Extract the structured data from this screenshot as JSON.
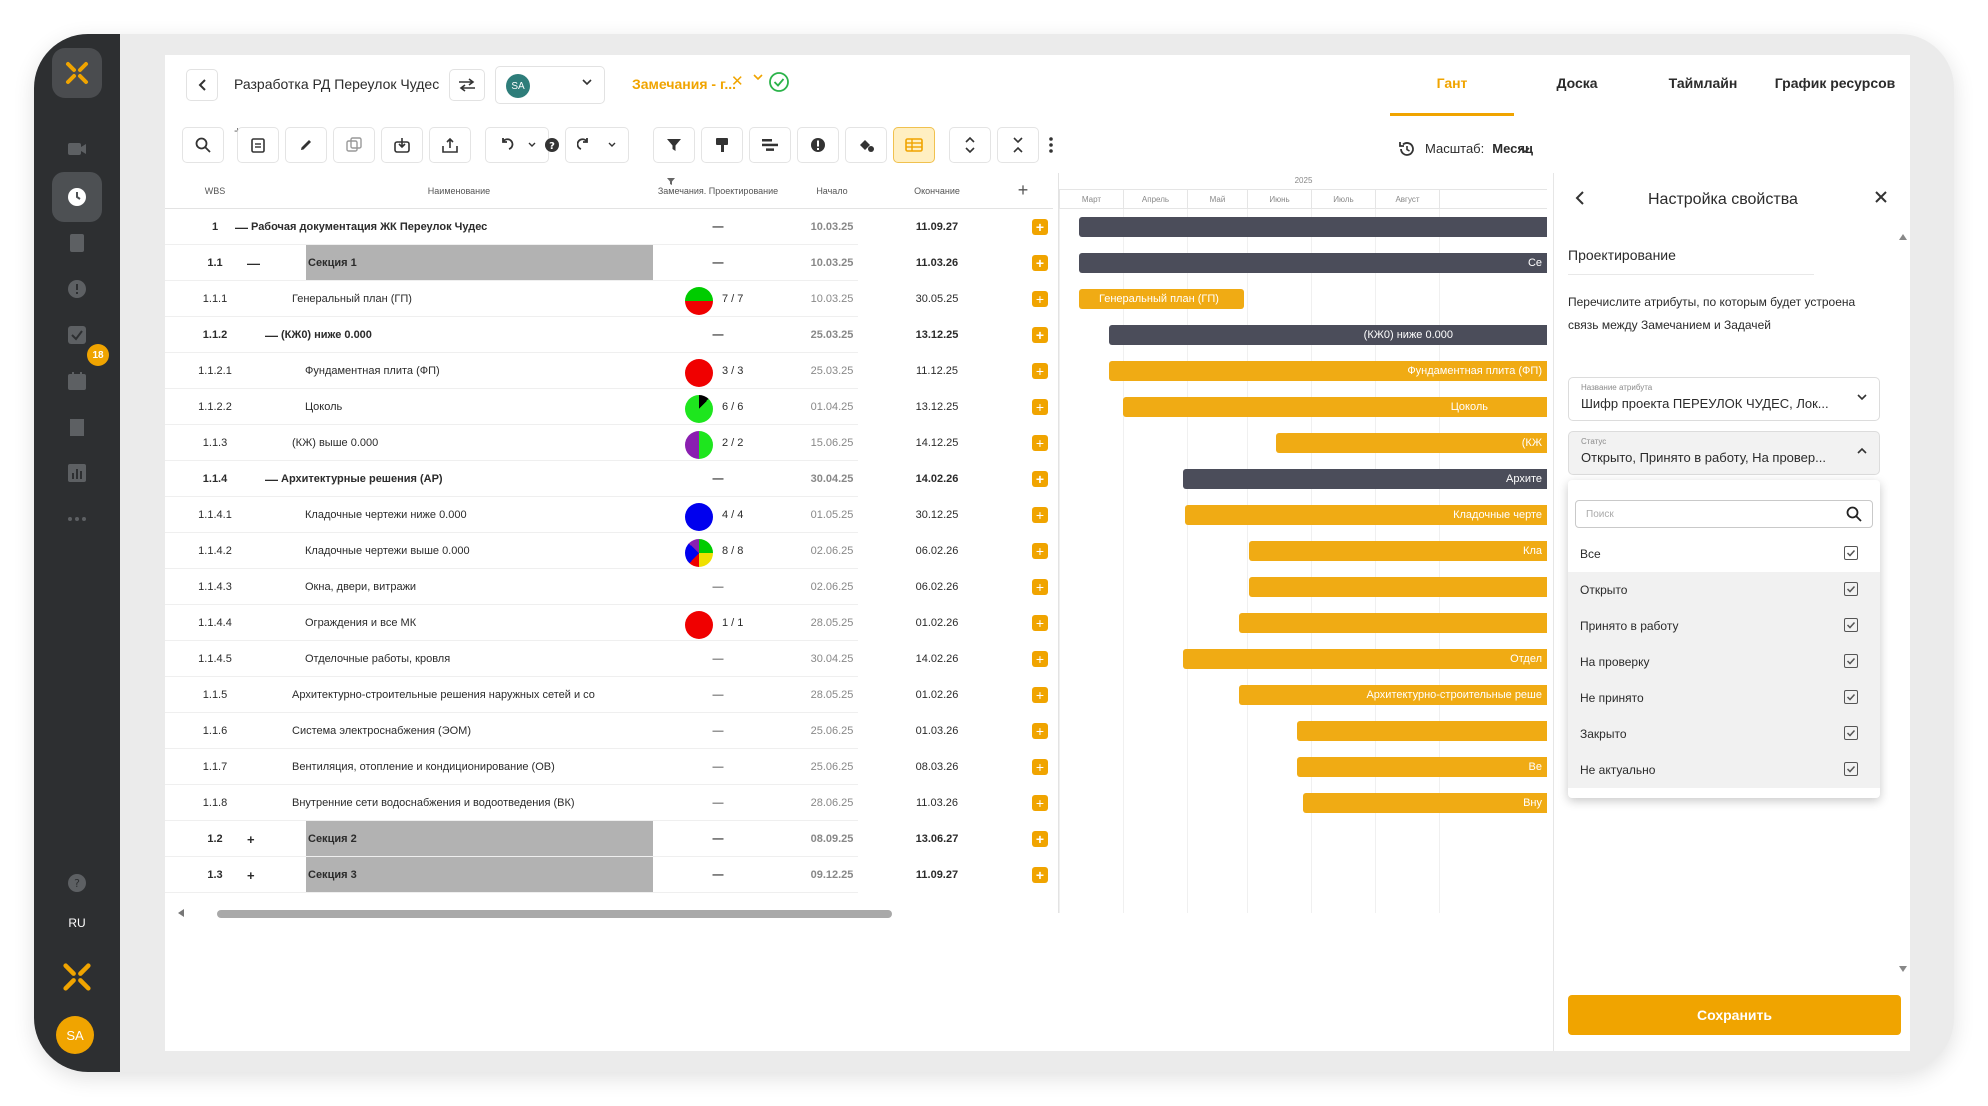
{
  "app": {
    "lang": "RU",
    "user_initials": "SA",
    "badge_count": "18"
  },
  "header": {
    "project_title": "Разработка РД Переулок Чудес",
    "user_initials": "SA",
    "filter_label": "Замечания - г...",
    "tabs": [
      {
        "label": "Гант"
      },
      {
        "label": "Доска"
      },
      {
        "label": "Таймлайн"
      },
      {
        "label": "График ресурсов"
      }
    ],
    "active_tab": "Гант"
  },
  "toolbar": {
    "scale_label": "Масштаб:",
    "scale_value": "Месяц"
  },
  "table": {
    "columns": [
      "WBS",
      "Наименование",
      "Замечания. Проектирование",
      "Начало",
      "Окончание"
    ],
    "rows": [
      {
        "wbs": "1",
        "name": "Рабочая документация ЖК Переулок Чудес",
        "toggle": "—",
        "remarks": "—",
        "start": "10.03.25",
        "end": "11.09.27"
      },
      {
        "wbs": "1.1",
        "name": "Секция 1",
        "toggle": "—",
        "remarks": "—",
        "start": "10.03.25",
        "end": "11.03.26"
      },
      {
        "wbs": "1.1.1",
        "name": "Генеральный план (ГП)",
        "remarks": "7 / 7",
        "start": "10.03.25",
        "end": "30.05.25"
      },
      {
        "wbs": "1.1.2",
        "name": "(КЖ0) ниже 0.000",
        "toggle": "—",
        "remarks": "—",
        "start": "25.03.25",
        "end": "13.12.25"
      },
      {
        "wbs": "1.1.2.1",
        "name": "Фундаментная плита (ФП)",
        "remarks": "3 / 3",
        "start": "25.03.25",
        "end": "11.12.25"
      },
      {
        "wbs": "1.1.2.2",
        "name": "Цоколь",
        "remarks": "6 / 6",
        "start": "01.04.25",
        "end": "13.12.25"
      },
      {
        "wbs": "1.1.3",
        "name": "(КЖ) выше 0.000",
        "remarks": "2 / 2",
        "start": "15.06.25",
        "end": "14.12.25"
      },
      {
        "wbs": "1.1.4",
        "name": "Архитектурные решения (АР)",
        "toggle": "—",
        "remarks": "—",
        "start": "30.04.25",
        "end": "14.02.26"
      },
      {
        "wbs": "1.1.4.1",
        "name": "Кладочные чертежи ниже 0.000",
        "remarks": "4 / 4",
        "start": "01.05.25",
        "end": "30.12.25"
      },
      {
        "wbs": "1.1.4.2",
        "name": "Кладочные чертежи выше 0.000",
        "remarks": "8 / 8",
        "start": "02.06.25",
        "end": "06.02.26"
      },
      {
        "wbs": "1.1.4.3",
        "name": "Окна, двери, витражи",
        "remarks": "—",
        "start": "02.06.25",
        "end": "06.02.26"
      },
      {
        "wbs": "1.1.4.4",
        "name": "Ограждения и все МК",
        "remarks": "1 / 1",
        "start": "28.05.25",
        "end": "01.02.26"
      },
      {
        "wbs": "1.1.4.5",
        "name": "Отделочные работы, кровля",
        "remarks": "—",
        "start": "30.04.25",
        "end": "14.02.26"
      },
      {
        "wbs": "1.1.5",
        "name": "Архитектурно-строительные решения наружных сетей и со",
        "remarks": "—",
        "start": "28.05.25",
        "end": "01.02.26"
      },
      {
        "wbs": "1.1.6",
        "name": "Система электроснабжения (ЭОМ)",
        "remarks": "—",
        "start": "25.06.25",
        "end": "01.03.26"
      },
      {
        "wbs": "1.1.7",
        "name": "Вентиляция, отопление и кондиционирование (ОВ)",
        "remarks": "—",
        "start": "25.06.25",
        "end": "08.03.26"
      },
      {
        "wbs": "1.1.8",
        "name": "Внутренние сети водоснабжения и водоотведения (ВК)",
        "remarks": "—",
        "start": "28.06.25",
        "end": "11.03.26"
      },
      {
        "wbs": "1.2",
        "name": "Секция 2",
        "toggle": "+",
        "remarks": "—",
        "start": "08.09.25",
        "end": "13.06.27"
      },
      {
        "wbs": "1.3",
        "name": "Секция 3",
        "toggle": "+",
        "remarks": "—",
        "start": "09.12.25",
        "end": "11.09.27"
      }
    ]
  },
  "gantt": {
    "year": "2025",
    "months": [
      "Март",
      "Апрель",
      "Май",
      "Июнь",
      "Июль",
      "Август"
    ],
    "bar_labels": [
      "Се",
      "Генеральный план (ГП)",
      "(КЖ0) ниже 0.000",
      "Фундаментная плита (ФП)",
      "Цоколь",
      "(КЖ",
      "Архите",
      "Кладочные черте",
      "Кла",
      "Отдел",
      "Архитектурно-строительные реше",
      "Вe",
      "Вну"
    ]
  },
  "panel": {
    "title": "Настройка свойства",
    "section": "Проектирование",
    "description": "Перечислите атрибуты, по которым будет устроена связь между Замечанием и Задачей",
    "attr_label": "Название атрибута",
    "attr_value": "Шифр проекта ПЕРЕУЛОК ЧУДЕС, Лок...",
    "status_label": "Статус",
    "status_value": "Открыто, Принято в работу, На провер...",
    "search_placeholder": "Поиск",
    "options": [
      "Все",
      "Открыто",
      "Принято в работу",
      "На проверку",
      "Не принято",
      "Закрыто",
      "Не актуально"
    ],
    "save_label": "Сохранить"
  }
}
